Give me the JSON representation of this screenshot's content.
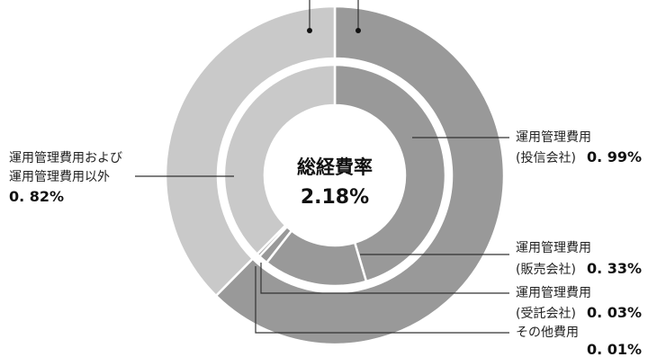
{
  "chart_data": {
    "type": "pie",
    "center": {
      "title": "総経費率",
      "value": "2.18%"
    },
    "outer_ring": [
      {
        "value": 0.82,
        "color": "#c9c9c9"
      },
      {
        "value": 1.36,
        "color": "#999999"
      }
    ],
    "inner_ring": [
      {
        "key": "investment",
        "value": 0.99,
        "color": "#999999"
      },
      {
        "key": "sales",
        "value": 0.33,
        "color": "#999999"
      },
      {
        "key": "trustee",
        "value": 0.03,
        "color": "#999999"
      },
      {
        "key": "other",
        "value": 0.01,
        "color": "#999999"
      },
      {
        "key": "combined",
        "value": 0.82,
        "color": "#c9c9c9"
      }
    ],
    "labels": {
      "investment": {
        "line1": "運用管理費用",
        "line2": "(投信会社)",
        "value_text": "0. 99%"
      },
      "sales": {
        "line1": "運用管理費用",
        "line2": "(販売会社)",
        "value_text": "0. 33%"
      },
      "trustee": {
        "line1": "運用管理費用",
        "line2": "(受託会社)",
        "value_text": "0. 03%"
      },
      "other": {
        "line1": "その他費用",
        "value_text": "0. 01%"
      },
      "combined": {
        "line1": "運用管理費用および",
        "line2": "運用管理費用以外",
        "value_text": "0. 82%"
      }
    }
  }
}
